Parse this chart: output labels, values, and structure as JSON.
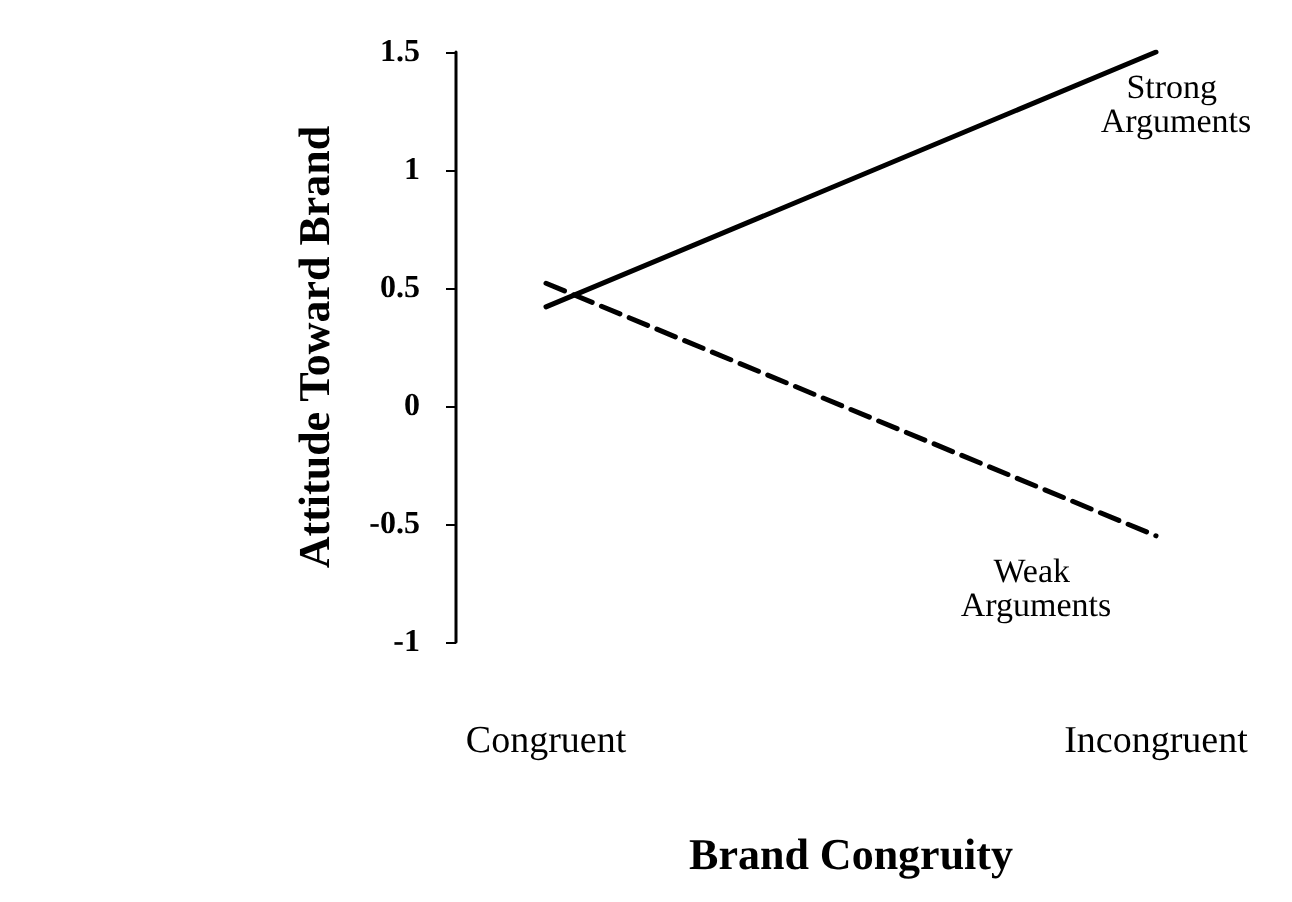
{
  "chart_data": {
    "type": "line",
    "xlabel": "Brand Congruity",
    "ylabel": "Attitude Toward Brand",
    "categories": [
      "Congruent",
      "Incongruent"
    ],
    "series": [
      {
        "name": "Strong Arguments",
        "color": "#000000",
        "line_style": "solid",
        "values": [
          0.42,
          1.5
        ]
      },
      {
        "name": "Weak Arguments",
        "color": "#000000",
        "line_style": "dashed",
        "values": [
          0.52,
          -0.55
        ]
      }
    ],
    "ylim": [
      -1,
      1.5
    ],
    "yticks": [
      -1,
      -0.5,
      0,
      0.5,
      1,
      1.5
    ],
    "grid": false,
    "legend": false,
    "marker": "none"
  }
}
